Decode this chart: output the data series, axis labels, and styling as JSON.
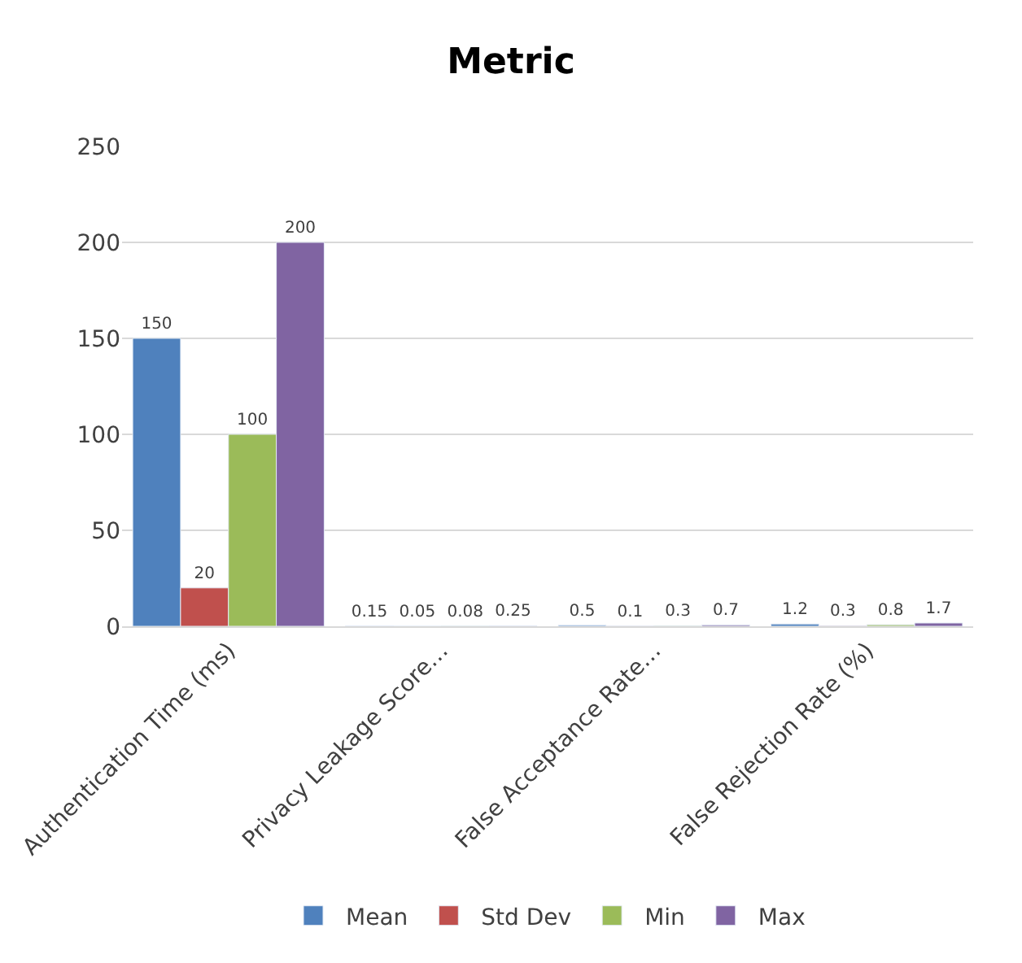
{
  "chart_data": {
    "type": "bar",
    "title": "Metric",
    "categories": [
      "Authentication Time (ms)",
      "Privacy Leakage Score…",
      "False Acceptance Rate…",
      "False Rejection Rate (%)"
    ],
    "series": [
      {
        "name": "Mean",
        "color": "#4f81bd",
        "values": [
          150,
          0.15,
          0.5,
          1.2
        ]
      },
      {
        "name": "Std Dev",
        "color": "#c0504d",
        "values": [
          20,
          0.05,
          0.1,
          0.3
        ]
      },
      {
        "name": "Min",
        "color": "#9bbb59",
        "values": [
          100,
          0.08,
          0.3,
          0.8
        ]
      },
      {
        "name": "Max",
        "color": "#8064a2",
        "values": [
          200,
          0.25,
          0.7,
          1.7
        ]
      }
    ],
    "ylim": [
      0,
      250
    ],
    "yticks": [
      0,
      50,
      100,
      150,
      200,
      250
    ],
    "grid": "y",
    "legend": "bottom",
    "data_labels": true
  }
}
